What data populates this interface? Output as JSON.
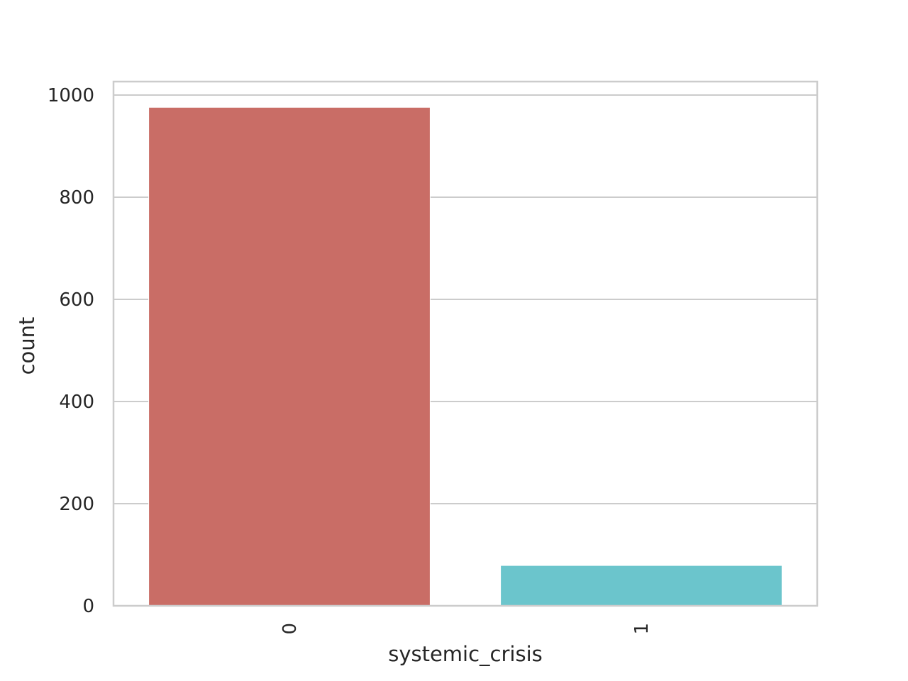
{
  "chart_data": {
    "type": "bar",
    "xlabel": "systemic_crisis",
    "ylabel": "count",
    "categories": [
      "0",
      "1"
    ],
    "values": [
      976,
      79
    ],
    "colors": [
      "#c96d66",
      "#6bc5cc"
    ],
    "ylim": [
      0,
      1000
    ],
    "yticks": [
      0,
      200,
      400,
      600,
      800,
      1000
    ],
    "xtick_rotation": 90,
    "grid": true,
    "grid_axis": "y",
    "legend": "none"
  }
}
